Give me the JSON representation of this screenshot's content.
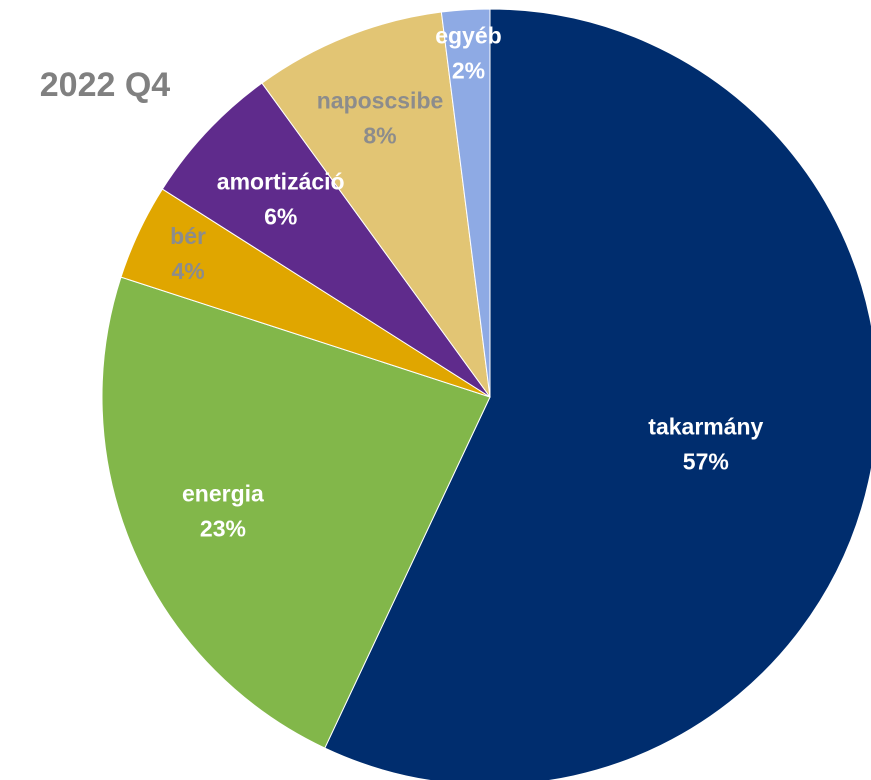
{
  "chart_data": {
    "type": "pie",
    "title": "2022 Q4",
    "categories": [
      "takarmány",
      "energia",
      "bér",
      "amortizáció",
      "naposcsibe",
      "egyéb"
    ],
    "values": [
      57,
      23,
      4,
      6,
      8,
      2
    ],
    "value_labels": [
      "57%",
      "23%",
      "4%",
      "6%",
      "8%",
      "2%"
    ],
    "colors": [
      "#002d6e",
      "#82b74a",
      "#e0a600",
      "#5f2b8c",
      "#e2c574",
      "#8eaae4"
    ],
    "label_colors": [
      "#ffffff",
      "#ffffff",
      "#8c8c8c",
      "#ffffff",
      "#8c8c8c",
      "#ffffff"
    ]
  }
}
